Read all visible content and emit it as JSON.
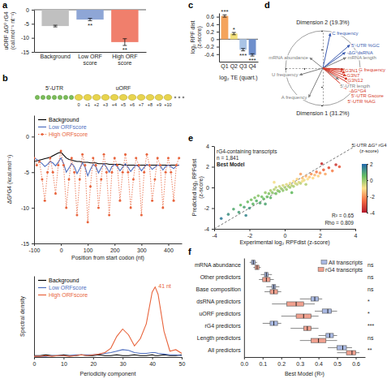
{
  "chart_data": [
    {
      "panel": "a",
      "type": "bar",
      "categories": [
        "Background",
        "Low ORF score",
        "High ORF score"
      ],
      "values": [
        -5.8,
        -3.5,
        -11.5
      ],
      "errors": [
        0.3,
        0.4,
        1.2
      ],
      "colors": [
        "#c0c0c0",
        "#8ea6d6",
        "#f07f6c"
      ],
      "significance": [
        null,
        "**",
        "**"
      ],
      "y_label": "uORF ΔG⁰ rG4 (cal.mol⁻¹ nt⁻¹)",
      "ylim": [
        -15,
        0
      ],
      "yticks": [
        0,
        -5,
        -10,
        -15
      ]
    },
    {
      "panel": "b",
      "type": "line",
      "diagram": {
        "region_labels": [
          "5'-UTR",
          "uORF"
        ],
        "codon_labels": [
          "0",
          "+1",
          "+2",
          "+3",
          "+4",
          "+5",
          "+6",
          "+7",
          "+8",
          "+9",
          "+10"
        ]
      },
      "x": [
        -100,
        -90,
        -80,
        -70,
        -60,
        -50,
        -40,
        -30,
        -20,
        -10,
        0,
        10,
        20,
        30,
        40,
        50,
        60,
        70,
        80,
        90,
        100,
        110,
        120,
        130,
        140,
        150,
        160,
        170,
        180,
        190,
        200,
        210,
        220,
        230,
        240,
        250,
        260,
        270,
        280,
        290,
        300,
        310,
        320,
        330,
        340,
        350,
        360,
        370,
        380,
        390,
        400,
        410,
        420,
        430,
        440
      ],
      "series": [
        {
          "name": "Background",
          "color": "#000000",
          "values": [
            -3.5,
            -3.4,
            -3.3,
            -3.2,
            -3.1,
            -3,
            -2.9,
            -2.7,
            -2.5,
            -2.3,
            -2.2,
            -2.6,
            -3,
            -3.2,
            -3.3,
            -3.4,
            -3.5,
            -3.5,
            -3.6,
            -3.6,
            -3.6,
            -3.7,
            -3.7,
            -3.7,
            -3.8,
            -3.8,
            -3.8,
            -3.8,
            -3.9,
            -3.9,
            -3.9,
            -3.9,
            -3.9,
            -4,
            -4,
            -4,
            -4,
            -4,
            -4,
            -4,
            -4,
            -4,
            -4,
            -4,
            -4,
            -4,
            -4,
            -4,
            -4,
            -4,
            -4,
            -4,
            -4,
            -4,
            -4
          ]
        },
        {
          "name": "Low ORFscore",
          "color": "#4f6fbf",
          "values": [
            -3,
            -3.2,
            -3.5,
            -3.8,
            -4.2,
            -3.9,
            -3.5,
            -3.7,
            -4.1,
            -3.6,
            -3,
            -3.8,
            -5,
            -4.4,
            -3.8,
            -4.2,
            -5.2,
            -4.5,
            -3.7,
            -4.3,
            -5.5,
            -4.6,
            -3.9,
            -4.2,
            -5.1,
            -4.4,
            -3.8,
            -4.3,
            -5,
            -4.2,
            -3.9,
            -4.2,
            -4.8,
            -4.3,
            -3.8,
            -4.3,
            -4.9,
            -4.4,
            -4,
            -4.2,
            -4.8,
            -4.3,
            -3.9,
            -4.1,
            -4.6,
            -4.3,
            -4,
            -4.1,
            -4.7,
            -4.2,
            -4,
            -4.2,
            -4.5,
            -4.1,
            -4
          ]
        },
        {
          "name": "High ORFscore",
          "color": "#e8643c",
          "marker": "circle",
          "line_style": "dotted",
          "values": [
            -3,
            -4,
            -3.5,
            -6,
            -9,
            -5,
            -3,
            -5,
            -8,
            -4,
            -2,
            -4,
            -10,
            -6,
            -3,
            -5,
            -11,
            -6,
            -2.5,
            -4,
            -12,
            -7,
            -3,
            -4,
            -10,
            -6,
            -2.5,
            -5,
            -11,
            -5,
            -3,
            -4,
            -9,
            -5,
            -2.5,
            -5,
            -10,
            -6,
            -3,
            -4,
            -11,
            -5,
            -2.5,
            -4,
            -9,
            -6,
            -3,
            -4,
            -10,
            -5,
            -3,
            -5,
            -9,
            -4,
            -3
          ]
        }
      ],
      "x_label": "Position from start codon (nt)",
      "y_label": "ΔG⁰G4 (kcal.mol⁻¹)",
      "xlim": [
        -100,
        450
      ],
      "xticks": [
        -100,
        0,
        100,
        200,
        300,
        400
      ],
      "ylim": [
        -15,
        3
      ],
      "yticks": [
        0,
        -5,
        -10,
        -15
      ],
      "legend": "top-left"
    },
    {
      "type": "line",
      "x": [
        0,
        2,
        4,
        6,
        8,
        10,
        12,
        14,
        16,
        18,
        20,
        22,
        24,
        26,
        28,
        30,
        32,
        34,
        36,
        38,
        40,
        41,
        42,
        44,
        46,
        48,
        50
      ],
      "series": [
        {
          "name": "Background",
          "color": "#000000",
          "values": [
            0.02,
            0.02,
            0.03,
            0.02,
            0.02,
            0.03,
            0.02,
            0.02,
            0.03,
            0.02,
            0.02,
            0.03,
            0.02,
            0.02,
            0.03,
            0.02,
            0.02,
            0.03,
            0.02,
            0.02,
            0.03,
            0.02,
            0.02,
            0.03,
            0.02,
            0.02,
            0.03
          ]
        },
        {
          "name": "Low ORFscore",
          "color": "#4f6fbf",
          "values": [
            0.01,
            0.01,
            0.01,
            0.02,
            0.02,
            0.02,
            0.02,
            0.03,
            0.03,
            0.03,
            0.03,
            0.04,
            0.05,
            0.06,
            0.08,
            0.1,
            0.09,
            0.06,
            0.05,
            0.05,
            0.06,
            0.06,
            0.05,
            0.04,
            0.03,
            0.03,
            0.02
          ]
        },
        {
          "name": "High ORFscore",
          "color": "#e8643c",
          "values": [
            0.01,
            0.01,
            0.02,
            0.01,
            0.02,
            0.02,
            0.01,
            0.02,
            0.03,
            0.02,
            0.03,
            0.04,
            0.06,
            0.12,
            0.28,
            0.38,
            0.3,
            0.15,
            0.25,
            0.45,
            0.88,
            0.95,
            0.85,
            0.35,
            0.08,
            0.1,
            0.05
          ]
        }
      ],
      "annotation": "41 nt",
      "x_label": "Periodicity component",
      "y_label": "Spectral density",
      "xlim": [
        0,
        50
      ],
      "xticks": [
        0,
        10,
        20,
        30,
        40,
        50
      ],
      "ylim": [
        0,
        1.1
      ],
      "tick_labels": "x",
      "legend": "top-left"
    },
    {
      "panel": "c",
      "type": "bar",
      "categories": [
        "Q1",
        "Q2",
        "Q3",
        "Q4"
      ],
      "values": [
        0.62,
        0.15,
        -0.28,
        -0.42
      ],
      "errors": [
        0.03,
        0.03,
        0.03,
        0.03
      ],
      "colors": [
        "#f4a45c",
        "#f3e07a",
        "#a9c3e6",
        "#6e8fcc"
      ],
      "significance": [
        "***",
        "*",
        "***",
        "***"
      ],
      "x_label": "log₂ TE (quart.)",
      "y_label": "log₂ RPF dist (z-score)",
      "ylim": [
        -0.6,
        0.7
      ],
      "yticks": [
        -0.4,
        -0.2,
        0,
        0.2,
        0.4,
        0.6
      ]
    },
    {
      "panel": "d",
      "type": "biplot",
      "categories": [
        "C frequency",
        "5'-UTR %GC",
        "-ΔG⁰dsRNA",
        "mRNA abundance",
        "mRNA length",
        "U frequency",
        "A frequency",
        "5'-UTR length",
        "G3N1",
        "G3N7",
        "G3N12",
        "G frequency",
        "-ΔG⁰G4",
        "5'-UTR Gscore",
        "5'-UTR %AG"
      ],
      "x": [
        0.2,
        0.72,
        0.6,
        -0.35,
        0.62,
        -0.62,
        -0.38,
        0.42,
        0.55,
        0.6,
        0.62,
        0.92,
        0.66,
        0.72,
        0.62
      ],
      "values": [
        0.93,
        0.62,
        0.42,
        0.28,
        0.28,
        -0.18,
        -0.78,
        -0.3,
        -0.05,
        -0.12,
        -0.2,
        -0.04,
        -0.3,
        -0.42,
        -0.55
      ],
      "colors": [
        "#3b5bb0",
        "#3b5bb0",
        "#3b5bb0",
        "#808080",
        "#808080",
        "#808080",
        "#808080",
        "#808080",
        "#d63a2a",
        "#d63a2a",
        "#d63a2a",
        "#d63a2a",
        "#d63a2a",
        "#d63a2a",
        "#d63a2a"
      ],
      "x_label": "Dimension 1 (31.2%)",
      "y_label": "Dimension 2 (19.3%)",
      "xlim": [
        -1,
        1
      ],
      "ylim": [
        -1,
        1
      ],
      "xticks": [
        -1,
        -0.5,
        0,
        0.5,
        1
      ],
      "yticks": [
        -1,
        -0.5,
        0,
        0.5,
        1
      ],
      "tick_labels": false
    },
    {
      "panel": "e",
      "type": "scatter",
      "x": [
        -3.2,
        -2.9,
        -2.6,
        -2.5,
        -2.3,
        -2.1,
        -2.0,
        -1.9,
        -1.8,
        -1.7,
        -1.6,
        -1.5,
        -1.4,
        -1.3,
        -1.2,
        -1.1,
        -1.0,
        -0.9,
        -0.8,
        -0.8,
        -0.7,
        -0.6,
        -0.5,
        -0.5,
        -0.4,
        -0.3,
        -0.3,
        -0.2,
        -0.1,
        -0.1,
        0.0,
        0.1,
        0.1,
        0.2,
        0.3,
        0.3,
        0.4,
        0.5,
        0.5,
        0.6,
        0.7,
        0.7,
        0.8,
        0.9,
        1.0,
        1.0,
        1.1,
        1.2,
        1.3,
        1.4,
        1.5,
        1.6,
        1.7,
        1.8,
        1.9,
        2.0,
        2.2,
        2.3,
        2.5,
        2.7,
        2.9,
        3.1,
        -2.2,
        -1.1,
        0.4,
        1.2,
        0.9,
        -0.6,
        2.1,
        -3.6
      ],
      "values": [
        -2.6,
        -2.1,
        -2.4,
        -1.7,
        -1.9,
        -1.4,
        -2.0,
        -1.2,
        -1.6,
        -1.0,
        -1.3,
        -0.8,
        -1.5,
        -0.9,
        -1.1,
        -0.5,
        -0.9,
        -0.6,
        -0.3,
        -1.0,
        -0.5,
        -0.2,
        -0.6,
        0.0,
        -0.3,
        0.1,
        -0.4,
        -0.1,
        0.2,
        -0.3,
        0.0,
        0.3,
        -0.2,
        0.1,
        0.4,
        0.0,
        0.2,
        0.6,
        0.1,
        0.4,
        0.3,
        0.8,
        0.5,
        0.4,
        0.9,
        0.6,
        0.7,
        1.1,
        0.8,
        1.0,
        1.3,
        0.9,
        1.2,
        1.5,
        1.1,
        1.4,
        1.7,
        1.3,
        1.9,
        1.6,
        2.2,
        2.0,
        -2.7,
        -1.6,
        -0.5,
        0.3,
        1.3,
        0.5,
        2.3,
        -3.0
      ],
      "color_values": [
        1.2,
        0.8,
        1.0,
        0.5,
        0.9,
        0.4,
        1.1,
        0.3,
        0.6,
        0.2,
        0.7,
        0.1,
        0.8,
        0.3,
        0.5,
        0.0,
        0.4,
        0.2,
        -0.2,
        0.6,
        0.1,
        -0.3,
        0.3,
        -0.4,
        0.0,
        -0.5,
        0.2,
        -0.1,
        -0.6,
        0.1,
        -0.2,
        -0.7,
        0.0,
        -0.3,
        -0.8,
        -0.1,
        -0.4,
        -1.0,
        -0.2,
        -0.6,
        -0.5,
        -1.2,
        -0.7,
        -0.4,
        -1.4,
        -0.9,
        -0.8,
        -1.6,
        -1.0,
        -1.3,
        -2.0,
        -1.1,
        -1.5,
        -2.3,
        -1.2,
        -1.9,
        -2.6,
        -1.7,
        -3.0,
        -2.2,
        -3.4,
        -2.8,
        1.4,
        0.9,
        0.5,
        -0.3,
        -1.8,
        -0.9,
        -3.6,
        1.6
      ],
      "x_label": "Experimental log₂ RPFdist (z-score)",
      "y_label": "Predicted log₂ RPFdist (z-score)",
      "xlim": [
        -4,
        4
      ],
      "ylim": [
        -4,
        4
      ],
      "xticks": [
        -4,
        -2,
        0,
        2,
        4
      ],
      "yticks": [
        -4,
        -2,
        0,
        2,
        4
      ],
      "annotations": [
        "rG4-containing transcripts",
        "n = 1,841",
        "Best Model"
      ],
      "stats": [
        "R² = 0.65",
        "Rho = 0.809"
      ],
      "colorbar": {
        "title": "5'-UTR ΔG⁰ rG4 (z-score)",
        "range": [
          -4,
          2
        ],
        "ticks": [
          2,
          0,
          -2,
          -4
        ],
        "colors": [
          "#b2182b",
          "#f46d43",
          "#fee08b",
          "#66bd63",
          "#2166ac"
        ]
      }
    },
    {
      "panel": "f",
      "type": "box",
      "orientation": "horizontal",
      "categories": [
        "mRNA abundance",
        "Other predictors",
        "Base composition",
        "dsRNA predictors",
        "uORF predictors",
        "rG4 predictors",
        "Length predictors",
        "All predictors"
      ],
      "series": [
        {
          "name": "All transcripts",
          "color": "#a9b9e3",
          "min": [
            0.03,
            0.09,
            0.12,
            0.3,
            0.38,
            0.1,
            0.4,
            0.45
          ],
          "q1": [
            0.04,
            0.11,
            0.15,
            0.36,
            0.42,
            0.14,
            0.44,
            0.5
          ],
          "median": [
            0.05,
            0.12,
            0.16,
            0.38,
            0.45,
            0.16,
            0.46,
            0.53
          ],
          "q3": [
            0.06,
            0.13,
            0.17,
            0.4,
            0.47,
            0.18,
            0.48,
            0.55
          ],
          "max": [
            0.07,
            0.15,
            0.19,
            0.42,
            0.5,
            0.2,
            0.5,
            0.58
          ]
        },
        {
          "name": "rG4 transcripts",
          "color": "#f0a08e",
          "min": [
            0.05,
            0.08,
            0.11,
            0.15,
            0.2,
            0.25,
            0.3,
            0.5
          ],
          "q1": [
            0.06,
            0.1,
            0.14,
            0.23,
            0.28,
            0.32,
            0.36,
            0.55
          ],
          "median": [
            0.07,
            0.12,
            0.16,
            0.28,
            0.32,
            0.34,
            0.4,
            0.58
          ],
          "q3": [
            0.08,
            0.14,
            0.18,
            0.32,
            0.36,
            0.36,
            0.44,
            0.6
          ],
          "max": [
            0.09,
            0.16,
            0.2,
            0.38,
            0.4,
            0.4,
            0.5,
            0.62
          ]
        }
      ],
      "significance": [
        "ns",
        "ns",
        "ns",
        "*",
        "*",
        "***",
        "ns",
        "**"
      ],
      "x_label": "Best Model (R²)",
      "xlim": [
        0,
        0.65
      ],
      "xticks": [
        {
          "value": 0,
          "label": "0.0"
        },
        0.1,
        0.2,
        0.3,
        0.4,
        0.5,
        0.6
      ],
      "legend": "top-right"
    }
  ]
}
